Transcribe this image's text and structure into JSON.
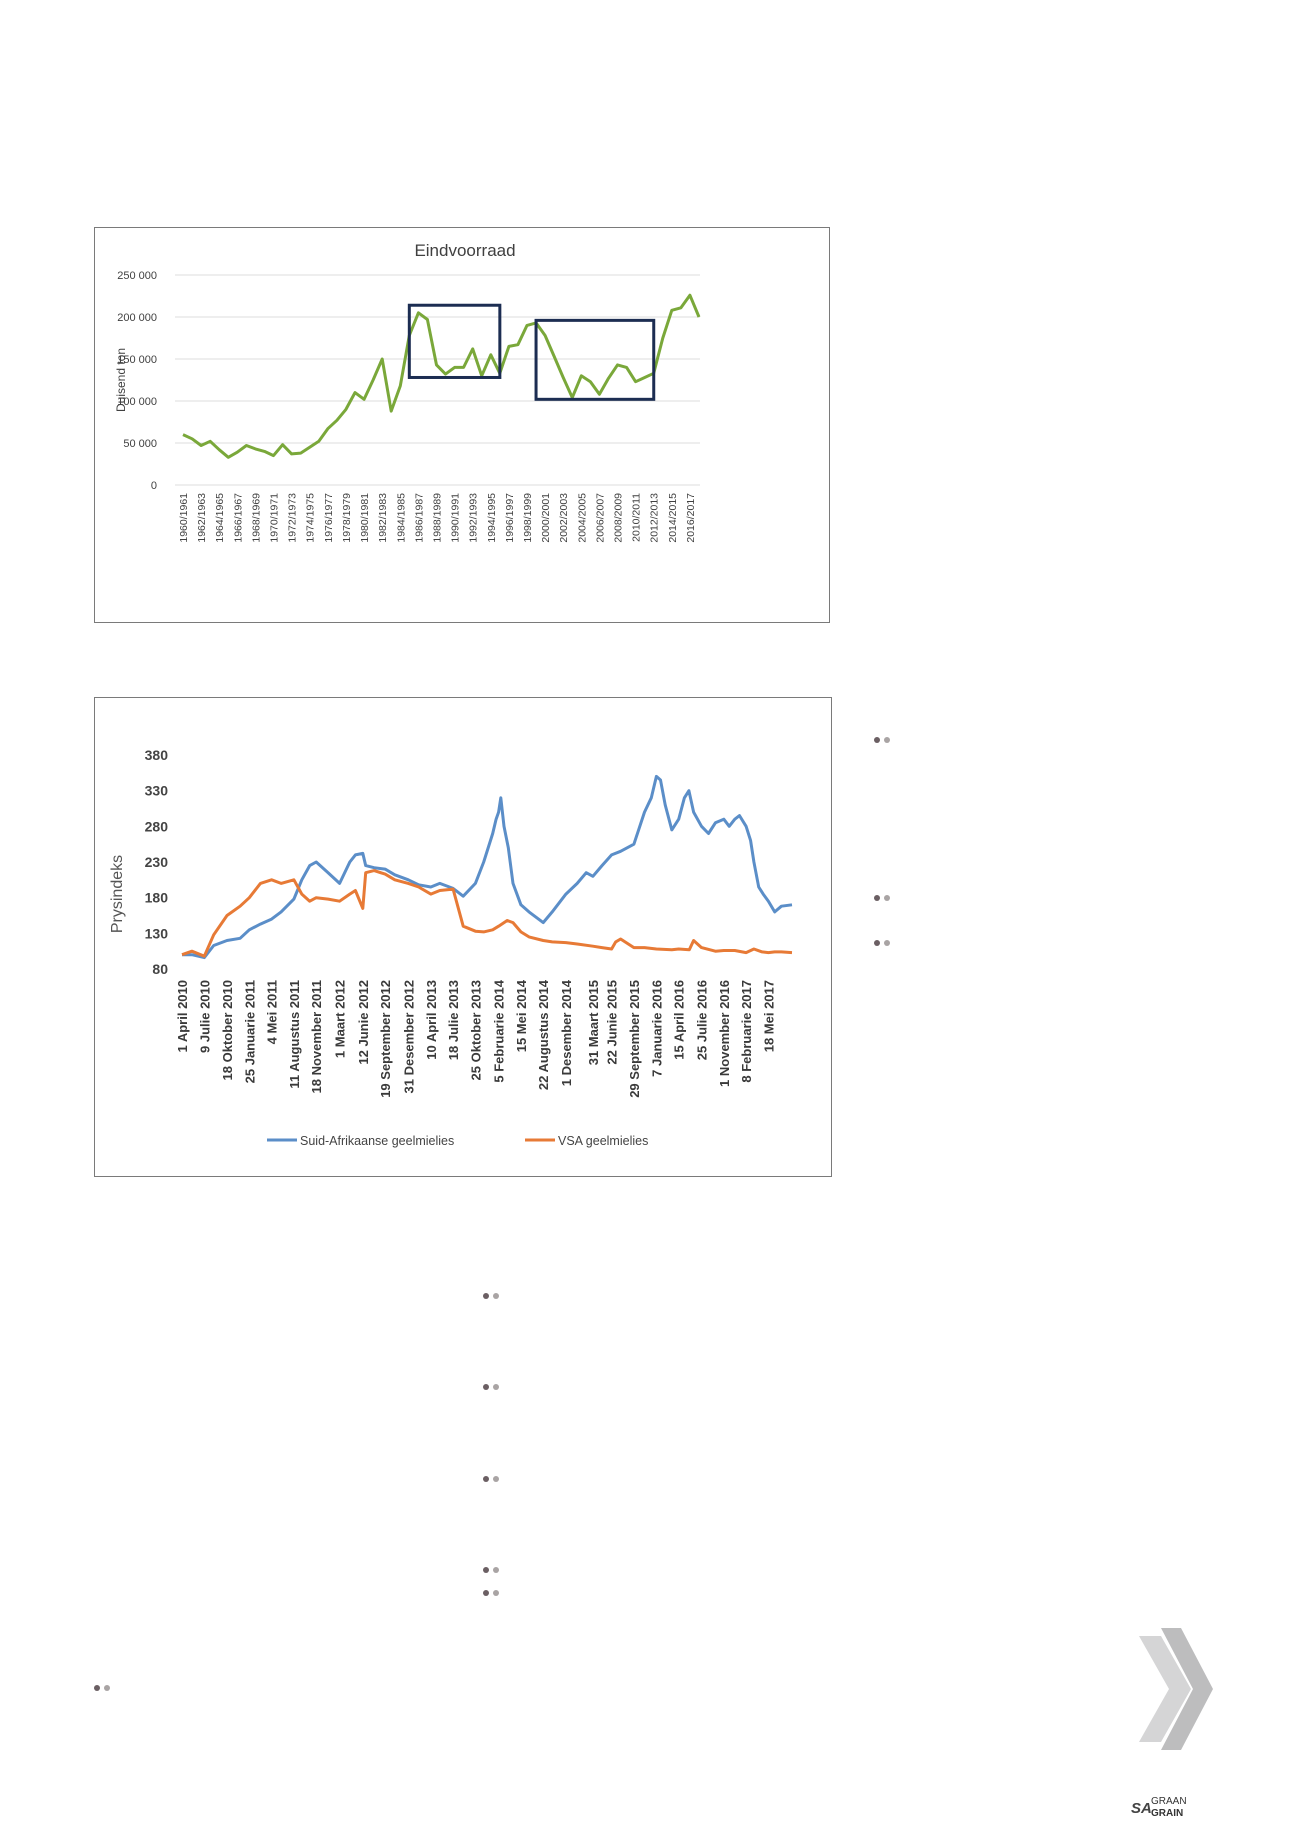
{
  "chart_data": [
    {
      "type": "line",
      "title": "Eindvoorraad",
      "ylabel": "Duisend ton",
      "ylim": [
        0,
        250000
      ],
      "yticks": [
        "0",
        "50 000",
        "100 000",
        "150 000",
        "200 000",
        "250 000"
      ],
      "ytick_values": [
        0,
        50000,
        100000,
        150000,
        200000,
        250000
      ],
      "categories": [
        "1960/1961",
        "1961/1962",
        "1962/1963",
        "1963/1964",
        "1964/1965",
        "1965/1966",
        "1966/1967",
        "1967/1968",
        "1968/1969",
        "1969/1970",
        "1970/1971",
        "1971/1972",
        "1972/1973",
        "1973/1974",
        "1974/1975",
        "1975/1976",
        "1976/1977",
        "1977/1978",
        "1978/1979",
        "1979/1980",
        "1980/1981",
        "1981/1982",
        "1982/1983",
        "1983/1984",
        "1984/1985",
        "1985/1986",
        "1986/1987",
        "1987/1988",
        "1988/1989",
        "1989/1990",
        "1990/1991",
        "1991/1992",
        "1992/1993",
        "1993/1994",
        "1994/1995",
        "1995/1996",
        "1996/1997",
        "1997/1998",
        "1998/1999",
        "1999/2000",
        "2000/2001",
        "2001/2002",
        "2002/2003",
        "2003/2004",
        "2004/2005",
        "2005/2006",
        "2006/2007",
        "2007/2008",
        "2008/2009",
        "2009/2010",
        "2010/2011",
        "2011/2012",
        "2012/2013",
        "2013/2014",
        "2014/2015",
        "2015/2016",
        "2016/2017",
        "2017/2018"
      ],
      "tick_labels": [
        "1960/1961",
        "1962/1963",
        "1964/1965",
        "1966/1967",
        "1968/1969",
        "1970/1971",
        "1972/1973",
        "1974/1975",
        "1976/1977",
        "1978/1979",
        "1980/1981",
        "1982/1983",
        "1984/1985",
        "1986/1987",
        "1988/1989",
        "1990/1991",
        "1992/1993",
        "1994/1995",
        "1996/1997",
        "1998/1999",
        "2000/2001",
        "2002/2003",
        "2004/2005",
        "2006/2007",
        "2008/2009",
        "2010/2011",
        "2012/2013",
        "2014/2015",
        "2016/2017"
      ],
      "values": [
        60000,
        55000,
        47000,
        52000,
        42000,
        33000,
        39000,
        47000,
        43000,
        40000,
        35000,
        48000,
        37000,
        38000,
        45000,
        52000,
        67000,
        77000,
        90000,
        110000,
        102000,
        125000,
        150000,
        88000,
        118000,
        178000,
        205000,
        197000,
        143000,
        132000,
        140000,
        140000,
        162000,
        130000,
        155000,
        133000,
        165000,
        167000,
        190000,
        193000,
        178000,
        153000,
        128000,
        104000,
        130000,
        123000,
        108000,
        127000,
        143000,
        140000,
        123000,
        128000,
        133000,
        175000,
        208000,
        211000,
        226000,
        200000
      ],
      "annotations": [
        {
          "shape": "rectangle",
          "x_from": "1985/1986",
          "x_to": "1995/1996",
          "y_from": 128000,
          "y_to": 214000
        },
        {
          "shape": "rectangle",
          "x_from": "1999/2000",
          "x_to": "2012/2013",
          "y_from": 102000,
          "y_to": 196000
        }
      ],
      "grid": true,
      "legend": "none",
      "colors": {
        "line": "#7aa83a",
        "box": "#1c2d52",
        "grid": "#dcdcdc"
      }
    },
    {
      "type": "line",
      "ylabel": "Prysindeks",
      "ylim": [
        80,
        380
      ],
      "yticks": [
        "80",
        "130",
        "180",
        "230",
        "280",
        "330",
        "380"
      ],
      "ytick_values": [
        80,
        130,
        180,
        230,
        280,
        330,
        380
      ],
      "x_start": "2010-04-01",
      "x_end": "2017-08-31",
      "tick_labels": [
        {
          "date": "2010-04-01",
          "label": "1 April 2010"
        },
        {
          "date": "2010-07-09",
          "label": "9 Julie 2010"
        },
        {
          "date": "2010-10-18",
          "label": "18 Oktober 2010"
        },
        {
          "date": "2011-01-25",
          "label": "25 Januarie 2011"
        },
        {
          "date": "2011-05-04",
          "label": "4 Mei 2011"
        },
        {
          "date": "2011-08-11",
          "label": "11 Augustus 2011"
        },
        {
          "date": "2011-11-18",
          "label": "18 November 2011"
        },
        {
          "date": "2012-03-01",
          "label": "1 Maart 2012"
        },
        {
          "date": "2012-06-12",
          "label": "12 Junie 2012"
        },
        {
          "date": "2012-09-19",
          "label": "19 September 2012"
        },
        {
          "date": "2012-12-31",
          "label": "31 Desember 2012"
        },
        {
          "date": "2013-04-10",
          "label": "10 April 2013"
        },
        {
          "date": "2013-07-18",
          "label": "18 Julie 2013"
        },
        {
          "date": "2013-10-25",
          "label": "25 Oktober 2013"
        },
        {
          "date": "2014-02-05",
          "label": "5 Februarie 2014"
        },
        {
          "date": "2014-05-15",
          "label": "15 Mei 2014"
        },
        {
          "date": "2014-08-22",
          "label": "22 Augustus 2014"
        },
        {
          "date": "2014-12-01",
          "label": "1 Desember 2014"
        },
        {
          "date": "2015-03-31",
          "label": "31 Maart 2015"
        },
        {
          "date": "2015-06-22",
          "label": "22 Junie 2015"
        },
        {
          "date": "2015-09-29",
          "label": "29 September 2015"
        },
        {
          "date": "2016-01-07",
          "label": "7 Januarie 2016"
        },
        {
          "date": "2016-04-15",
          "label": "15 April 2016"
        },
        {
          "date": "2016-07-25",
          "label": "25 Julie 2016"
        },
        {
          "date": "2016-11-01",
          "label": "1 November 2016"
        },
        {
          "date": "2017-02-08",
          "label": "8 Februarie 2017"
        },
        {
          "date": "2017-05-18",
          "label": "18 Mei 2017"
        }
      ],
      "series": [
        {
          "name": "Suid-Afrikaanse geelmielies",
          "color": "#5b8ec8",
          "x": [
            "2010-04-01",
            "2010-05-15",
            "2010-07-09",
            "2010-08-20",
            "2010-10-18",
            "2010-12-15",
            "2011-01-25",
            "2011-03-15",
            "2011-05-04",
            "2011-06-15",
            "2011-08-11",
            "2011-09-15",
            "2011-10-20",
            "2011-11-18",
            "2012-01-10",
            "2012-03-01",
            "2012-04-15",
            "2012-05-10",
            "2012-06-12",
            "2012-06-25",
            "2012-08-01",
            "2012-09-19",
            "2012-11-01",
            "2012-12-31",
            "2013-02-15",
            "2013-04-10",
            "2013-05-20",
            "2013-07-18",
            "2013-09-01",
            "2013-10-25",
            "2013-12-01",
            "2014-01-10",
            "2014-01-25",
            "2014-02-05",
            "2014-02-15",
            "2014-03-01",
            "2014-03-20",
            "2014-04-10",
            "2014-05-15",
            "2014-06-20",
            "2014-08-22",
            "2014-10-01",
            "2014-12-01",
            "2015-01-20",
            "2015-03-01",
            "2015-03-31",
            "2015-05-10",
            "2015-06-22",
            "2015-08-01",
            "2015-09-29",
            "2015-11-15",
            "2015-12-15",
            "2016-01-07",
            "2016-01-25",
            "2016-02-15",
            "2016-03-15",
            "2016-04-15",
            "2016-05-10",
            "2016-05-30",
            "2016-06-20",
            "2016-07-25",
            "2016-08-25",
            "2016-09-25",
            "2016-11-01",
            "2016-11-25",
            "2016-12-20",
            "2017-01-10",
            "2017-02-08",
            "2017-02-28",
            "2017-03-15",
            "2017-04-05",
            "2017-04-25",
            "2017-05-18",
            "2017-06-15",
            "2017-07-15",
            "2017-08-31"
          ],
          "values": [
            100,
            100,
            96,
            113,
            120,
            123,
            135,
            143,
            150,
            160,
            178,
            205,
            225,
            230,
            215,
            200,
            230,
            240,
            242,
            225,
            222,
            220,
            212,
            205,
            198,
            195,
            200,
            193,
            182,
            200,
            230,
            270,
            290,
            300,
            320,
            280,
            250,
            200,
            170,
            160,
            145,
            160,
            185,
            200,
            215,
            210,
            225,
            240,
            245,
            255,
            300,
            320,
            350,
            345,
            310,
            275,
            290,
            320,
            330,
            300,
            280,
            270,
            285,
            290,
            280,
            290,
            295,
            280,
            260,
            230,
            195,
            185,
            175,
            160,
            168,
            170
          ]
        },
        {
          "name": "VSA geelmielies",
          "color": "#e77a36",
          "x": [
            "2010-04-01",
            "2010-05-15",
            "2010-07-09",
            "2010-08-20",
            "2010-10-18",
            "2010-12-15",
            "2011-01-25",
            "2011-03-15",
            "2011-05-04",
            "2011-06-15",
            "2011-08-11",
            "2011-09-15",
            "2011-10-20",
            "2011-11-18",
            "2012-01-10",
            "2012-03-01",
            "2012-04-15",
            "2012-05-10",
            "2012-06-12",
            "2012-06-25",
            "2012-08-01",
            "2012-09-19",
            "2012-11-01",
            "2012-12-31",
            "2013-02-15",
            "2013-04-10",
            "2013-05-20",
            "2013-07-18",
            "2013-09-01",
            "2013-10-25",
            "2013-12-01",
            "2014-01-10",
            "2014-02-05",
            "2014-03-15",
            "2014-04-10",
            "2014-05-15",
            "2014-06-20",
            "2014-08-22",
            "2014-10-01",
            "2014-12-01",
            "2015-01-20",
            "2015-03-31",
            "2015-05-10",
            "2015-06-22",
            "2015-07-10",
            "2015-08-01",
            "2015-09-29",
            "2015-11-15",
            "2016-01-07",
            "2016-03-15",
            "2016-04-15",
            "2016-06-01",
            "2016-06-20",
            "2016-07-25",
            "2016-09-25",
            "2016-11-01",
            "2016-12-20",
            "2017-02-08",
            "2017-03-15",
            "2017-04-20",
            "2017-05-18",
            "2017-06-15",
            "2017-07-15",
            "2017-08-31"
          ],
          "values": [
            100,
            105,
            98,
            128,
            155,
            168,
            180,
            200,
            205,
            200,
            205,
            185,
            175,
            180,
            178,
            175,
            185,
            190,
            165,
            215,
            218,
            213,
            205,
            200,
            195,
            185,
            190,
            192,
            140,
            133,
            132,
            135,
            140,
            148,
            145,
            132,
            125,
            120,
            118,
            117,
            115,
            112,
            110,
            108,
            118,
            122,
            110,
            110,
            108,
            107,
            108,
            107,
            120,
            110,
            105,
            106,
            106,
            103,
            108,
            104,
            103,
            104,
            104,
            103
          ]
        }
      ],
      "grid": false,
      "legend": "bottom",
      "colors": {
        "tick_text": "#3a3a3a"
      }
    }
  ]
}
